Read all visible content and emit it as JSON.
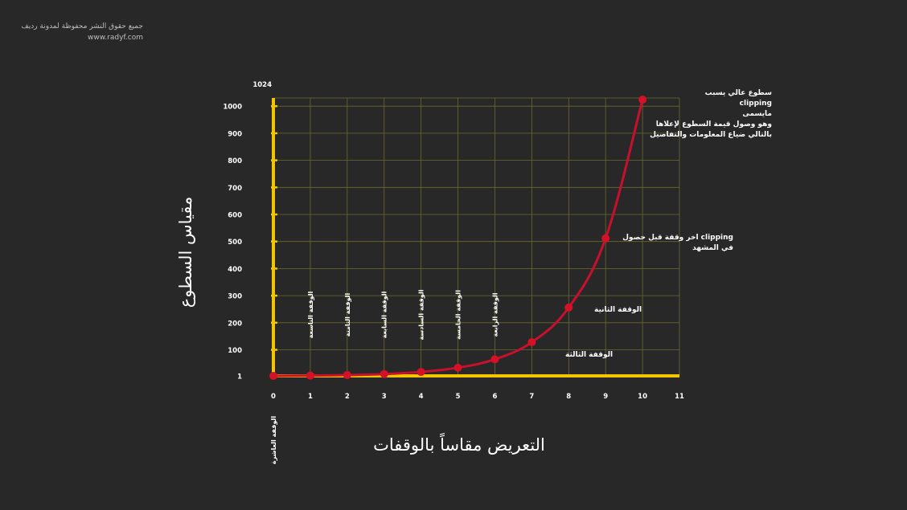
{
  "watermark": {
    "line1": "جميع حقوق النشر محفوظة لمدونة رديف",
    "line2": "www.radyf.com"
  },
  "chart_data": {
    "type": "line",
    "ylabel": "مقياس السطوع",
    "xlabel": "التعريض مقاساً بالوقفات",
    "x_ticks": [
      "0",
      "1",
      "2",
      "3",
      "4",
      "5",
      "6",
      "7",
      "8",
      "9",
      "10",
      "11"
    ],
    "y_ticks": [
      "1",
      "100",
      "200",
      "300",
      "400",
      "500",
      "600",
      "700",
      "800",
      "900",
      "1000"
    ],
    "y_top_label": "1024",
    "xlim": [
      0,
      11
    ],
    "ylim": [
      0,
      1024
    ],
    "grid": true,
    "colors": {
      "axis": "#f2c500",
      "grid": "#6b6a2c",
      "line": "#c8102e",
      "point": "#d41126"
    },
    "series": [
      {
        "x": [
          0,
          1,
          2,
          3,
          4,
          5,
          6,
          7,
          8,
          9,
          10
        ],
        "y": [
          1,
          2,
          4,
          8,
          16,
          32,
          64,
          128,
          256,
          512,
          1024
        ]
      }
    ],
    "stop_labels": [
      {
        "x": 0,
        "text": "الوقفة العاشرة"
      },
      {
        "x": 1,
        "text": "الوقفة التاسعة"
      },
      {
        "x": 2,
        "text": "الوقفة الثامنة"
      },
      {
        "x": 3,
        "text": "الوقفة السابعة"
      },
      {
        "x": 4,
        "text": "الوقفة السادسة"
      },
      {
        "x": 5,
        "text": "الوقفة الخامسة"
      },
      {
        "x": 6,
        "text": "الوقفة الرابعة"
      }
    ],
    "annotations": [
      {
        "lines": [
          "الوقفة الثالثة"
        ]
      },
      {
        "lines": [
          "الوقفة الثانية"
        ]
      },
      {
        "lines": [
          "اخر وقفة قبل حصول clipping",
          "في المشهد"
        ]
      },
      {
        "lines": [
          "سطوع عالي يسبب",
          "clipping",
          "مايسمى",
          "وهو وصول قيمة السطوع لإعلاها",
          "بالتالي ضياع المعلومات والتفاصيل"
        ]
      }
    ]
  }
}
